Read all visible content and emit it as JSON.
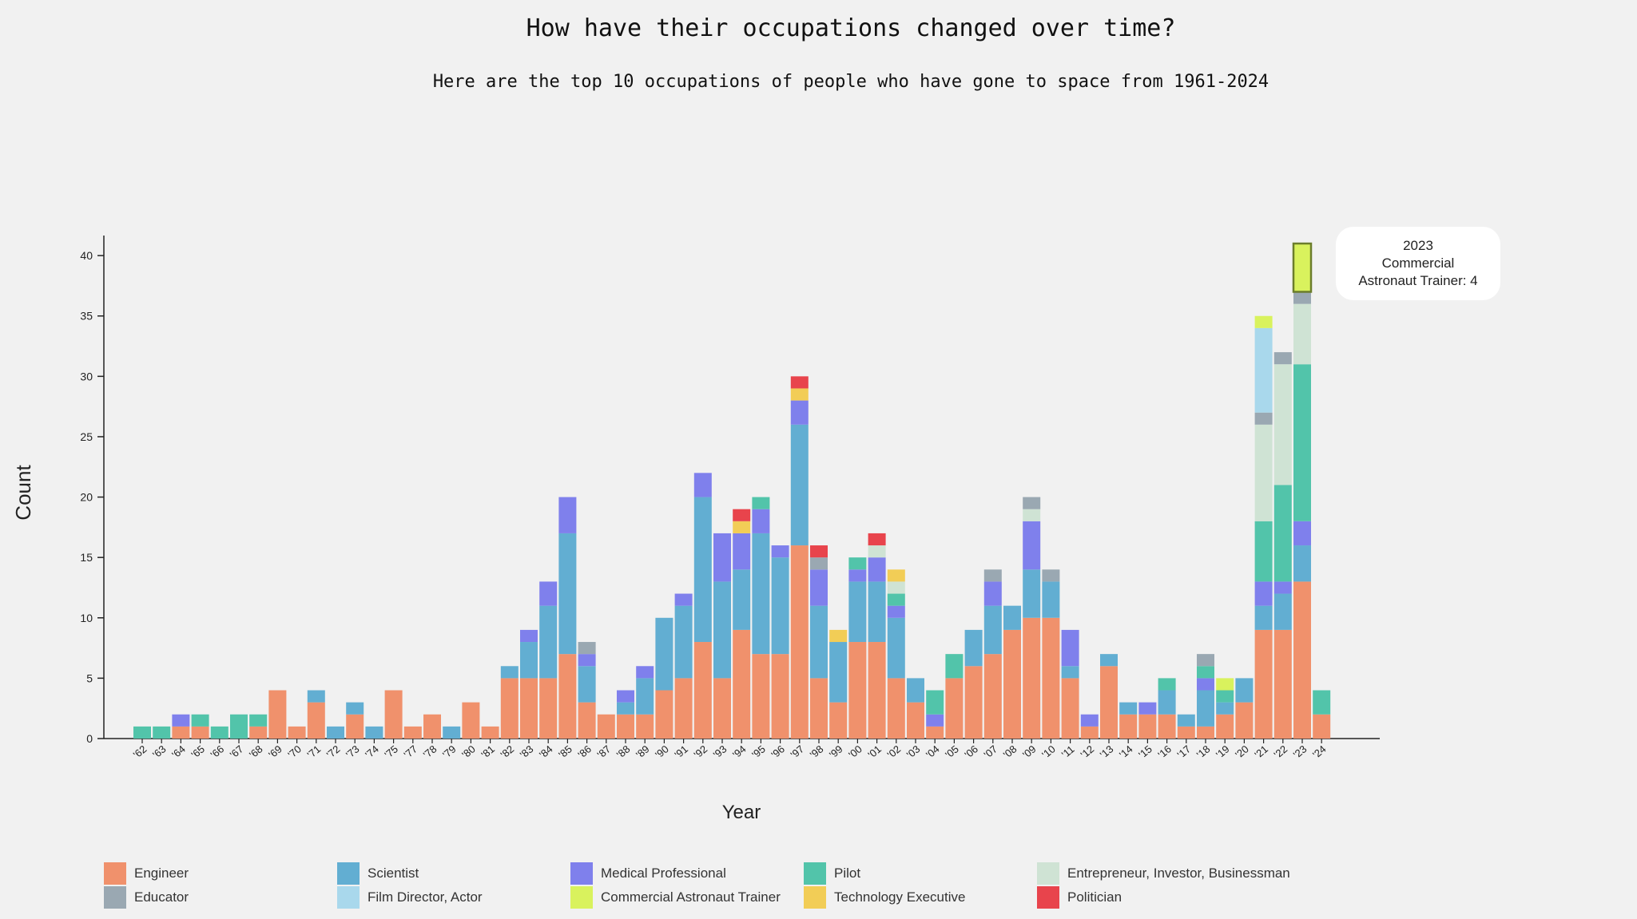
{
  "chart_data": {
    "type": "bar",
    "stacked": true,
    "title": "How have their occupations changed over time?",
    "subtitle": "Here are the top 10 occupations of people who have gone to space from 1961-2024",
    "xlabel": "Year",
    "ylabel": "Count",
    "ylim": [
      0,
      41
    ],
    "yticks": [
      0,
      5,
      10,
      15,
      20,
      25,
      30,
      35,
      40
    ],
    "categories": [
      "'62",
      "'63",
      "'64",
      "'65",
      "'66",
      "'67",
      "'68",
      "'69",
      "'70",
      "'71",
      "'72",
      "'73",
      "'74",
      "'75",
      "'77",
      "'78",
      "'79",
      "'80",
      "'81",
      "'82",
      "'83",
      "'84",
      "'85",
      "'86",
      "'87",
      "'88",
      "'89",
      "'90",
      "'91",
      "'92",
      "'93",
      "'94",
      "'95",
      "'96",
      "'97",
      "'98",
      "'99",
      "'00",
      "'01",
      "'02",
      "'03",
      "'04",
      "'05",
      "'06",
      "'07",
      "'08",
      "'09",
      "'10",
      "'11",
      "'12",
      "'13",
      "'14",
      "'15",
      "'16",
      "'17",
      "'18",
      "'19",
      "'20",
      "'21",
      "'22",
      "'23",
      "'24"
    ],
    "series": [
      {
        "name": "Engineer",
        "color": "#f0916c",
        "values": [
          0,
          0,
          1,
          1,
          0,
          0,
          1,
          4,
          1,
          3,
          0,
          2,
          0,
          4,
          1,
          2,
          0,
          3,
          1,
          5,
          5,
          5,
          7,
          3,
          2,
          2,
          2,
          4,
          5,
          8,
          5,
          9,
          7,
          7,
          16,
          5,
          3,
          8,
          8,
          5,
          3,
          1,
          5,
          6,
          7,
          9,
          10,
          10,
          5,
          1,
          6,
          2,
          2,
          2,
          1,
          1,
          2,
          3,
          9,
          9,
          13,
          2
        ]
      },
      {
        "name": "Scientist",
        "color": "#62aed2",
        "values": [
          0,
          0,
          0,
          0,
          0,
          0,
          0,
          0,
          0,
          1,
          1,
          1,
          1,
          0,
          0,
          0,
          1,
          0,
          0,
          1,
          3,
          6,
          10,
          3,
          0,
          1,
          3,
          6,
          6,
          12,
          8,
          5,
          10,
          8,
          10,
          6,
          5,
          5,
          5,
          5,
          2,
          0,
          0,
          3,
          4,
          2,
          4,
          3,
          1,
          0,
          1,
          1,
          0,
          2,
          1,
          3,
          1,
          2,
          2,
          3,
          3,
          0
        ]
      },
      {
        "name": "Medical Professional",
        "color": "#7f80ec",
        "values": [
          0,
          0,
          1,
          0,
          0,
          0,
          0,
          0,
          0,
          0,
          0,
          0,
          0,
          0,
          0,
          0,
          0,
          0,
          0,
          0,
          1,
          2,
          3,
          1,
          0,
          1,
          1,
          0,
          1,
          2,
          4,
          3,
          2,
          1,
          2,
          3,
          0,
          1,
          2,
          1,
          0,
          1,
          0,
          0,
          2,
          0,
          4,
          0,
          3,
          1,
          0,
          0,
          1,
          0,
          0,
          1,
          0,
          0,
          2,
          1,
          2,
          0
        ]
      },
      {
        "name": "Pilot",
        "color": "#52c4aa",
        "values": [
          1,
          1,
          0,
          1,
          1,
          2,
          1,
          0,
          0,
          0,
          0,
          0,
          0,
          0,
          0,
          0,
          0,
          0,
          0,
          0,
          0,
          0,
          0,
          0,
          0,
          0,
          0,
          0,
          0,
          0,
          0,
          0,
          1,
          0,
          0,
          0,
          0,
          1,
          0,
          1,
          0,
          2,
          2,
          0,
          0,
          0,
          0,
          0,
          0,
          0,
          0,
          0,
          0,
          1,
          0,
          1,
          1,
          0,
          5,
          8,
          13,
          2
        ]
      },
      {
        "name": "Entrepreneur, Investor, Businessman",
        "color": "#cfe3d4",
        "values": [
          0,
          0,
          0,
          0,
          0,
          0,
          0,
          0,
          0,
          0,
          0,
          0,
          0,
          0,
          0,
          0,
          0,
          0,
          0,
          0,
          0,
          0,
          0,
          0,
          0,
          0,
          0,
          0,
          0,
          0,
          0,
          0,
          0,
          0,
          0,
          0,
          0,
          0,
          1,
          1,
          0,
          0,
          0,
          0,
          0,
          0,
          1,
          0,
          0,
          0,
          0,
          0,
          0,
          0,
          0,
          0,
          0,
          0,
          8,
          10,
          5,
          0
        ]
      },
      {
        "name": "Educator",
        "color": "#9aa8b2",
        "values": [
          0,
          0,
          0,
          0,
          0,
          0,
          0,
          0,
          0,
          0,
          0,
          0,
          0,
          0,
          0,
          0,
          0,
          0,
          0,
          0,
          0,
          0,
          0,
          1,
          0,
          0,
          0,
          0,
          0,
          0,
          0,
          0,
          0,
          0,
          0,
          1,
          0,
          0,
          0,
          0,
          0,
          0,
          0,
          0,
          1,
          0,
          1,
          1,
          0,
          0,
          0,
          0,
          0,
          0,
          0,
          1,
          0,
          0,
          1,
          1,
          1,
          0
        ]
      },
      {
        "name": "Film Director, Actor",
        "color": "#a9d8ec",
        "values": [
          0,
          0,
          0,
          0,
          0,
          0,
          0,
          0,
          0,
          0,
          0,
          0,
          0,
          0,
          0,
          0,
          0,
          0,
          0,
          0,
          0,
          0,
          0,
          0,
          0,
          0,
          0,
          0,
          0,
          0,
          0,
          0,
          0,
          0,
          0,
          0,
          0,
          0,
          0,
          0,
          0,
          0,
          0,
          0,
          0,
          0,
          0,
          0,
          0,
          0,
          0,
          0,
          0,
          0,
          0,
          0,
          0,
          0,
          7,
          0,
          0,
          0
        ]
      },
      {
        "name": "Commercial Astronaut Trainer",
        "color": "#d9f25d",
        "values": [
          0,
          0,
          0,
          0,
          0,
          0,
          0,
          0,
          0,
          0,
          0,
          0,
          0,
          0,
          0,
          0,
          0,
          0,
          0,
          0,
          0,
          0,
          0,
          0,
          0,
          0,
          0,
          0,
          0,
          0,
          0,
          0,
          0,
          0,
          0,
          0,
          0,
          0,
          0,
          0,
          0,
          0,
          0,
          0,
          0,
          0,
          0,
          0,
          0,
          0,
          0,
          0,
          0,
          0,
          0,
          0,
          1,
          0,
          1,
          0,
          4,
          0
        ]
      },
      {
        "name": "Technology Executive",
        "color": "#f2cd56",
        "values": [
          0,
          0,
          0,
          0,
          0,
          0,
          0,
          0,
          0,
          0,
          0,
          0,
          0,
          0,
          0,
          0,
          0,
          0,
          0,
          0,
          0,
          0,
          0,
          0,
          0,
          0,
          0,
          0,
          0,
          0,
          0,
          1,
          0,
          0,
          1,
          0,
          1,
          0,
          0,
          1,
          0,
          0,
          0,
          0,
          0,
          0,
          0,
          0,
          0,
          0,
          0,
          0,
          0,
          0,
          0,
          0,
          0,
          0,
          0,
          0,
          0,
          0
        ]
      },
      {
        "name": "Politician",
        "color": "#e8444c",
        "values": [
          0,
          0,
          0,
          0,
          0,
          0,
          0,
          0,
          0,
          0,
          0,
          0,
          0,
          0,
          0,
          0,
          0,
          0,
          0,
          0,
          0,
          0,
          0,
          0,
          0,
          0,
          0,
          0,
          0,
          0,
          0,
          1,
          0,
          0,
          1,
          1,
          0,
          0,
          1,
          0,
          0,
          0,
          0,
          0,
          0,
          0,
          0,
          0,
          0,
          0,
          0,
          0,
          0,
          0,
          0,
          0,
          0,
          0,
          0,
          0,
          0,
          0
        ]
      }
    ],
    "legend_order": [
      "Engineer",
      "Scientist",
      "Medical Professional",
      "Pilot",
      "Entrepreneur, Investor, Businessman",
      "Educator",
      "Film Director, Actor",
      "Commercial Astronaut Trainer",
      "Technology Executive",
      "Politician"
    ],
    "legend_placement": "bottom",
    "grid": false,
    "highlight": {
      "category": "'23",
      "series": "Commercial Astronaut Trainer"
    },
    "tooltip": {
      "year": "2023",
      "line1": "Commercial",
      "line2": "Astronaut Trainer: 4"
    }
  }
}
